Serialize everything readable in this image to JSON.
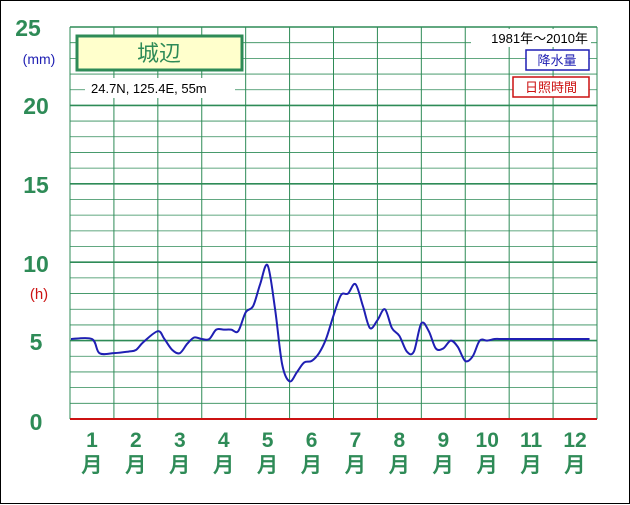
{
  "station": {
    "name": "城辺",
    "coords": "24.7N,  125.4E,  55m"
  },
  "period": "1981年〜2010年",
  "legend": {
    "precipitation": "降水量",
    "sunshine": "日照時間"
  },
  "colors": {
    "grid": "#2e8b57",
    "label_box_fill": "#ffffcc",
    "precip_line": "#1f1fb3",
    "sunshine_line": "#cc1111",
    "axis_text": "#2e8b57"
  },
  "chart_data": {
    "type": "line",
    "title": "城辺",
    "y_unit_top": "(mm)",
    "y_unit_bottom": "(h)",
    "ylim": [
      0,
      25
    ],
    "ytick_labels": [
      "0",
      "5",
      "10",
      "15",
      "20",
      "25"
    ],
    "categories": [
      {
        "num": "1",
        "unit": "月"
      },
      {
        "num": "2",
        "unit": "月"
      },
      {
        "num": "3",
        "unit": "月"
      },
      {
        "num": "4",
        "unit": "月"
      },
      {
        "num": "5",
        "unit": "月"
      },
      {
        "num": "6",
        "unit": "月"
      },
      {
        "num": "7",
        "unit": "月"
      },
      {
        "num": "8",
        "unit": "月"
      },
      {
        "num": "9",
        "unit": "月"
      },
      {
        "num": "10",
        "unit": "月"
      },
      {
        "num": "11",
        "unit": "月"
      },
      {
        "num": "12",
        "unit": "月"
      }
    ],
    "grid": true,
    "series": [
      {
        "name": "降水量",
        "x": [
          1.0,
          1.17,
          1.5,
          1.83,
          2.0,
          2.17,
          2.5,
          2.65,
          2.83,
          3.0,
          3.17,
          3.33,
          3.5,
          3.67,
          3.83,
          4.0,
          4.17,
          4.33,
          4.5,
          4.67,
          4.83,
          5.0,
          5.17,
          5.33,
          5.5,
          5.67,
          5.83,
          6.0,
          6.17,
          6.33,
          6.5,
          6.67,
          6.83,
          7.0,
          7.17,
          7.33,
          7.5,
          7.67,
          7.83,
          8.0,
          8.17,
          8.33,
          8.5,
          8.67,
          8.83,
          9.0,
          9.17,
          9.33,
          9.5,
          9.67,
          9.83,
          10.0,
          10.17,
          10.33,
          10.5,
          10.67,
          10.83,
          11.0,
          11.17,
          11.33,
          11.5,
          11.67,
          11.83,
          12.0,
          12.17,
          12.33,
          12.5
        ],
        "values": [
          5.1,
          4.2,
          4.2,
          4.3,
          4.4,
          4.9,
          5.6,
          5.1,
          4.4,
          4.2,
          4.8,
          5.2,
          5.1,
          5.1,
          5.7,
          5.7,
          5.7,
          5.6,
          6.8,
          7.2,
          8.6,
          9.8,
          7.0,
          3.5,
          2.4,
          3.0,
          3.6,
          3.7,
          4.2,
          5.1,
          6.6,
          7.9,
          8.0,
          8.6,
          7.2,
          5.8,
          6.3,
          7.0,
          5.8,
          5.3,
          4.3,
          4.3,
          6.1,
          5.6,
          4.5,
          4.5,
          5.0,
          4.6,
          3.7,
          4.0,
          5.0,
          5.0,
          5.1,
          5.1,
          5.1,
          5.1,
          5.1,
          5.1,
          5.1,
          5.1,
          5.1,
          5.1,
          5.1,
          5.1,
          5.1,
          5.1,
          5.1
        ]
      }
    ]
  }
}
